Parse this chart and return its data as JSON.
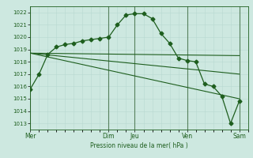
{
  "bg_color": "#cde8e0",
  "line_color": "#1e5e1e",
  "grid_color_minor": "#b8d8d0",
  "grid_color_major": "#b8d8d0",
  "vline_color": "#2a5a2a",
  "ylabel": "Pression niveau de la mer( hPa )",
  "ylim": [
    1012.5,
    1022.5
  ],
  "yticks": [
    1013,
    1014,
    1015,
    1016,
    1017,
    1018,
    1019,
    1020,
    1021,
    1022
  ],
  "day_labels": [
    "Mer",
    "Dim",
    "Jeu",
    "Ven",
    "Sam"
  ],
  "day_positions": [
    0,
    9,
    12,
    18,
    24
  ],
  "xlim": [
    0,
    25
  ],
  "series1_x": [
    0,
    1,
    2,
    3,
    4,
    5,
    6,
    7,
    8,
    9,
    10,
    11,
    12,
    13,
    14,
    15,
    16,
    17,
    18,
    19,
    20,
    21,
    22,
    23,
    24
  ],
  "series1_y": [
    1015.8,
    1017.0,
    1018.6,
    1019.2,
    1019.4,
    1019.5,
    1019.7,
    1019.8,
    1019.9,
    1020.0,
    1021.0,
    1021.8,
    1021.9,
    1021.9,
    1021.5,
    1020.3,
    1019.5,
    1018.3,
    1018.1,
    1018.0,
    1016.2,
    1016.0,
    1015.2,
    1013.0,
    1014.8
  ],
  "series2_x": [
    0,
    24
  ],
  "series2_y": [
    1018.7,
    1018.5
  ],
  "series3_x": [
    0,
    24
  ],
  "series3_y": [
    1018.7,
    1017.0
  ],
  "series4_x": [
    0,
    24
  ],
  "series4_y": [
    1018.7,
    1015.0
  ]
}
